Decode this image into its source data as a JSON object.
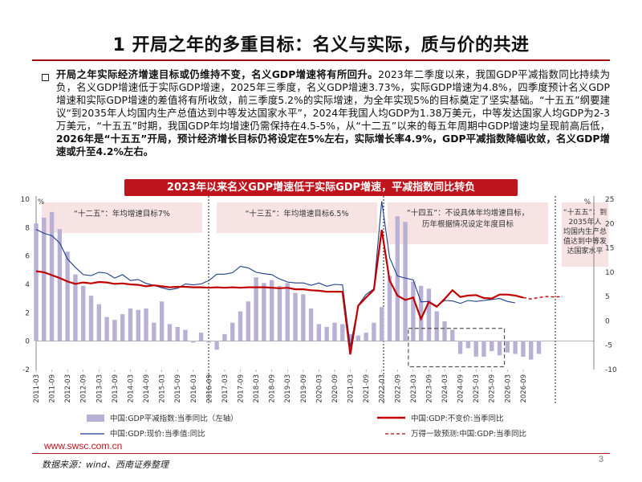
{
  "page": {
    "title": "1 开局之年的多重目标：名义与实际，质与价的共进",
    "para_bold_1": "开局之年实际经济增速目标或仍维持不变，名义GDP增速将有所回升。",
    "para_text_1": "2023年二季度以来，我国GDP平减指数同比持续为负，名义GDP增速低于实际GDP增速，2025年三季度，名义GDP增速3.73%，实际GDP增速为4.8%，四季度预计名义GDP增速和实际GDP增速的差值将有所收敛，前三季度5.2%的实际增速，为全年实现5%的目标奠定了坚实基础。“十五五”纲要建议“到2035年人均国内生产总值达到中等发达国家水平”，2024年我国人均GDP为1.38万美元，中等发达国家人均GDP为2-3万美元，“十五五”时期，我国GDP年均增速仍需保持在4.5-5%，从“十二五”以来的每五年周期中GDP增速均呈现前高后低，",
    "para_bold_2": "2026年是“十五五”开局，预计经济增长目标仍将设定在5%左右，实际增长率4.9%，GDP平减指数降幅收敛，名义GDP增速或升至4.2%左右。",
    "banner": "2023年以来名义GDP增速低于实际GDP增速，平减指数同比转负",
    "footer_url": "www.swsc.com.cn",
    "source": "数据来源：wind、西南证券整理",
    "page_number": "3"
  },
  "chart_data": {
    "type": "bar+line",
    "left_axis": {
      "unit": "%",
      "ylim": [
        -2,
        10
      ],
      "ticks": [
        "-2",
        "0",
        "2",
        "4",
        "6",
        "8",
        "10"
      ]
    },
    "right_axis": {
      "unit": "%",
      "ylim": [
        -10,
        25
      ],
      "ticks": [
        "-10",
        "-5",
        "0",
        "5",
        "10",
        "15",
        "20",
        "25"
      ]
    },
    "x_tick_labels": [
      "2011-03",
      "2011-09",
      "2012-03",
      "2012-09",
      "2013-03",
      "2013-09",
      "2014-03",
      "2014-09",
      "2015-03",
      "2015-09",
      "2016-03",
      "2016-09",
      "2017-03",
      "2017-09",
      "2018-03",
      "2018-09",
      "2019-03",
      "2019-09",
      "2020-03",
      "2020-09",
      "2021-03",
      "2021-09",
      "2022-03",
      "2022-09",
      "2023-03",
      "2023-09",
      "2024-03",
      "2024-09",
      "2025-03",
      "2025-09",
      "2026-03",
      "2026-09"
    ],
    "periods": [
      {
        "label": "“十二五”：年均增速目标7%"
      },
      {
        "label": "“十三五”：年均增速目标6.5%"
      },
      {
        "label": "“十四五”：不设具体年均增速目标，历年根据情况设定年度目标"
      },
      {
        "label": "“十五五”：到2035年人均国内生产总值达到中等发达国家水平"
      }
    ],
    "series": [
      {
        "name": "中国:GDP平减指数:当季同比（左轴）",
        "kind": "bar",
        "axis": "left",
        "color": "#b9b0d6",
        "values": [
          8.3,
          8.7,
          9.1,
          7.9,
          6.3,
          4.7,
          3.9,
          3.2,
          2.6,
          1.7,
          1.5,
          1.9,
          2.3,
          2.2,
          2.3,
          1.3,
          2.8,
          1.2,
          1.0,
          0.8,
          -0.1,
          0.6,
          -0.1,
          -0.6,
          0.5,
          1.3,
          2.1,
          2.8,
          4.5,
          4.1,
          4.3,
          3.9,
          4.1,
          3.4,
          3.3,
          2.3,
          1.2,
          1.0,
          1.3,
          1.2,
          0.5,
          0.4,
          0.6,
          1.3,
          2.4,
          4.6,
          8.8,
          8.4,
          4.2,
          3.9,
          3.7,
          2.1,
          1.4,
          0.8,
          -0.9,
          -0.5,
          -1.1,
          -1.1,
          -0.7,
          -1.0,
          -0.8,
          -0.9,
          -1.1,
          -1.3,
          -0.9
        ]
      },
      {
        "name": "中国:GDP:不变价:当季同比",
        "kind": "line",
        "axis": "right",
        "color": "#c00000",
        "values": [
          10.2,
          10.0,
          9.4,
          8.8,
          8.1,
          7.6,
          7.9,
          7.7,
          8.0,
          7.9,
          7.6,
          7.7,
          7.5,
          7.4,
          7.1,
          7.3,
          7.1,
          6.9,
          7.0,
          7.0,
          6.9,
          6.9,
          6.8,
          6.9,
          6.8,
          6.9,
          6.8,
          6.9,
          6.9,
          6.9,
          6.8,
          6.7,
          6.8,
          6.5,
          6.5,
          6.3,
          6.2,
          6.0,
          6.0,
          6.0,
          -6.9,
          3.1,
          4.8,
          6.4,
          18.7,
          8.3,
          5.2,
          4.3,
          4.8,
          0.4,
          3.9,
          2.9,
          4.5,
          6.3,
          4.9,
          5.2,
          5.3,
          4.7,
          4.6,
          5.4,
          5.4,
          5.2,
          4.8
        ]
      },
      {
        "name": "中国:GDP:现价:当季值:同比",
        "kind": "line",
        "axis": "right",
        "color": "#1f3c8c",
        "values": [
          18.8,
          18.0,
          17.5,
          16.0,
          12.7,
          11.0,
          9.5,
          9.3,
          10.0,
          9.8,
          8.8,
          9.5,
          8.3,
          8.5,
          7.7,
          7.3,
          6.8,
          6.4,
          6.7,
          7.6,
          7.4,
          7.6,
          8.3,
          9.6,
          9.6,
          9.9,
          11.2,
          10.9,
          10.0,
          9.7,
          9.5,
          8.6,
          8.0,
          7.8,
          7.8,
          7.3,
          7.8,
          7.1,
          7.5,
          7.4,
          -5.3,
          3.2,
          5.4,
          6.6,
          24.6,
          13.0,
          9.2,
          8.8,
          8.4,
          3.9,
          4.0,
          3.1,
          4.2,
          4.1,
          3.6,
          4.2,
          4.0,
          4.2,
          4.4,
          4.6,
          4.0,
          3.7
        ]
      },
      {
        "name": "万得一致预测:中国:GDP:当季同比",
        "kind": "line-dashed",
        "axis": "right",
        "color": "#c00000",
        "values": [
          4.8,
          4.5,
          4.8,
          5.0,
          4.9,
          5.0
        ]
      }
    ]
  }
}
